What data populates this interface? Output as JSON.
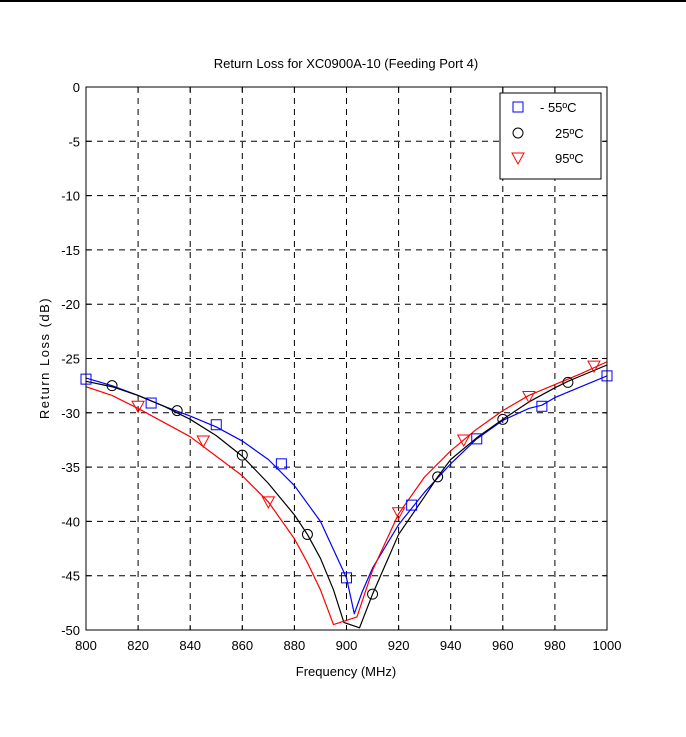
{
  "chart_data": {
    "type": "line",
    "title": "Return Loss for XC0900A-10 (Feeding Port 4)",
    "xlabel": "Frequency (MHz)",
    "ylabel": "Return Loss (dB)",
    "xlim": [
      800,
      1000
    ],
    "ylim": [
      -50,
      0
    ],
    "xticks": [
      800,
      820,
      840,
      860,
      880,
      900,
      920,
      940,
      960,
      980,
      1000
    ],
    "yticks": [
      0,
      -5,
      -10,
      -15,
      -20,
      -25,
      -30,
      -35,
      -40,
      -45,
      -50
    ],
    "grid": true,
    "legend_position": "top-right",
    "series": [
      {
        "name": "- 55ºC",
        "color": "#0000ff",
        "marker": "square",
        "curve": [
          [
            800,
            -26.8
          ],
          [
            810,
            -27.5
          ],
          [
            820,
            -28.4
          ],
          [
            830,
            -29.4
          ],
          [
            840,
            -30.3
          ],
          [
            850,
            -31.3
          ],
          [
            860,
            -32.6
          ],
          [
            870,
            -34.3
          ],
          [
            880,
            -36.7
          ],
          [
            890,
            -40.0
          ],
          [
            895,
            -42.6
          ],
          [
            900,
            -45.2
          ],
          [
            903,
            -48.5
          ],
          [
            906,
            -46.5
          ],
          [
            910,
            -44.3
          ],
          [
            920,
            -40.3
          ],
          [
            930,
            -37.3
          ],
          [
            940,
            -34.7
          ],
          [
            950,
            -32.4
          ],
          [
            960,
            -30.7
          ],
          [
            970,
            -29.6
          ],
          [
            975,
            -29.3
          ],
          [
            980,
            -28.6
          ],
          [
            990,
            -27.6
          ],
          [
            1000,
            -26.6
          ]
        ],
        "markers": [
          [
            800,
            -26.9
          ],
          [
            825,
            -29.1
          ],
          [
            850,
            -31.1
          ],
          [
            875,
            -34.7
          ],
          [
            900,
            -45.2
          ],
          [
            925,
            -38.5
          ],
          [
            950,
            -32.4
          ],
          [
            975,
            -29.4
          ],
          [
            1000,
            -26.6
          ]
        ]
      },
      {
        "name": "25ºC",
        "color": "#000000",
        "marker": "circle",
        "curve": [
          [
            800,
            -27.1
          ],
          [
            810,
            -27.6
          ],
          [
            820,
            -28.4
          ],
          [
            830,
            -29.4
          ],
          [
            840,
            -30.6
          ],
          [
            850,
            -32.1
          ],
          [
            860,
            -34.0
          ],
          [
            870,
            -36.5
          ],
          [
            880,
            -39.4
          ],
          [
            885,
            -41.2
          ],
          [
            890,
            -43.4
          ],
          [
            895,
            -46.3
          ],
          [
            899,
            -49.3
          ],
          [
            905,
            -49.8
          ],
          [
            910,
            -46.7
          ],
          [
            920,
            -41.2
          ],
          [
            930,
            -37.7
          ],
          [
            935,
            -35.9
          ],
          [
            940,
            -34.3
          ],
          [
            950,
            -32.3
          ],
          [
            960,
            -30.6
          ],
          [
            970,
            -29.0
          ],
          [
            980,
            -27.7
          ],
          [
            985,
            -27.1
          ],
          [
            990,
            -26.6
          ],
          [
            1000,
            -25.6
          ]
        ],
        "markers": [
          [
            810,
            -27.5
          ],
          [
            835,
            -29.8
          ],
          [
            860,
            -33.9
          ],
          [
            885,
            -41.2
          ],
          [
            910,
            -46.7
          ],
          [
            935,
            -35.9
          ],
          [
            960,
            -30.6
          ],
          [
            985,
            -27.2
          ]
        ]
      },
      {
        "name": "95ºC",
        "color": "#ff0000",
        "marker": "triangle",
        "curve": [
          [
            800,
            -27.6
          ],
          [
            810,
            -28.4
          ],
          [
            820,
            -29.6
          ],
          [
            830,
            -30.9
          ],
          [
            840,
            -32.2
          ],
          [
            850,
            -34.0
          ],
          [
            860,
            -35.8
          ],
          [
            870,
            -38.2
          ],
          [
            880,
            -41.6
          ],
          [
            885,
            -43.8
          ],
          [
            890,
            -46.3
          ],
          [
            895,
            -49.5
          ],
          [
            904,
            -48.8
          ],
          [
            910,
            -44.5
          ],
          [
            920,
            -39.3
          ],
          [
            930,
            -35.9
          ],
          [
            940,
            -33.5
          ],
          [
            950,
            -31.5
          ],
          [
            960,
            -29.8
          ],
          [
            970,
            -28.4
          ],
          [
            980,
            -27.4
          ],
          [
            990,
            -26.4
          ],
          [
            1000,
            -25.3
          ]
        ],
        "markers": [
          [
            820,
            -29.4
          ],
          [
            845,
            -32.6
          ],
          [
            870,
            -38.2
          ],
          [
            920,
            -39.2
          ],
          [
            945,
            -32.5
          ],
          [
            970,
            -28.5
          ],
          [
            995,
            -25.7
          ]
        ]
      }
    ]
  }
}
